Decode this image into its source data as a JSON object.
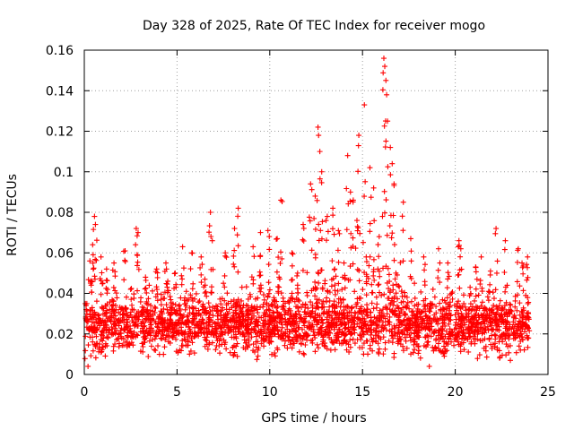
{
  "chart_data": {
    "type": "scatter",
    "title": "Day 328 of 2025, Rate Of TEC Index for receiver mogo",
    "xlabel": "GPS time / hours",
    "ylabel": "ROTI / TECUs",
    "xlim": [
      0,
      25
    ],
    "ylim": [
      0,
      0.16
    ],
    "xticks": [
      0,
      5,
      10,
      15,
      20,
      25
    ],
    "xtick_labels": [
      "0",
      "5",
      "10",
      "15",
      "20",
      "25"
    ],
    "yticks": [
      0,
      0.02,
      0.04,
      0.06,
      0.08,
      0.1,
      0.12,
      0.14,
      0.16
    ],
    "ytick_labels": [
      "0",
      "0.02",
      "0.04",
      "0.06",
      "0.08",
      "0.1",
      "0.12",
      "0.14",
      "0.16"
    ],
    "grid": true,
    "marker": "plus",
    "color": "#ff0000",
    "series": [
      {
        "name": "ROTI",
        "dense_band": {
          "x_range": [
            0,
            24
          ],
          "y_range": [
            0.005,
            0.045
          ]
        },
        "x": [
          0.3,
          0.45,
          0.55,
          0.6,
          0.9,
          1.2,
          1.6,
          2.2,
          2.8,
          2.9,
          3.3,
          3.9,
          4.4,
          4.9,
          5.3,
          5.8,
          6.3,
          6.8,
          6.9,
          7.6,
          8.1,
          8.3,
          9.1,
          9.5,
          9.9,
          10.4,
          10.6,
          11.2,
          11.8,
          12.2,
          12.45,
          12.6,
          12.7,
          12.8,
          13.1,
          13.4,
          13.7,
          14.2,
          14.35,
          14.5,
          14.7,
          14.8,
          15.1,
          15.4,
          15.6,
          15.9,
          16.15,
          16.2,
          16.3,
          16.35,
          16.5,
          16.6,
          16.7,
          17.2,
          17.6,
          18.3,
          19.1,
          19.6,
          20.2,
          20.3,
          21.1,
          21.4,
          21.9,
          22.2,
          22.7,
          23.4,
          23.6,
          23.9,
          0.1,
          1.0,
          2.5,
          3.5,
          4.5,
          5.5,
          6.5,
          7.5,
          8.5,
          9.5,
          10.5,
          11.5,
          13.5,
          14.0,
          15.2,
          16.8,
          17.8,
          18.8,
          19.8,
          20.8,
          21.8,
          22.8,
          23.8,
          18.6,
          0.2
        ],
        "y": [
          0.056,
          0.064,
          0.078,
          0.074,
          0.058,
          0.052,
          0.055,
          0.061,
          0.072,
          0.07,
          0.048,
          0.052,
          0.055,
          0.05,
          0.063,
          0.06,
          0.058,
          0.08,
          0.066,
          0.06,
          0.072,
          0.082,
          0.063,
          0.07,
          0.071,
          0.067,
          0.086,
          0.06,
          0.074,
          0.094,
          0.088,
          0.122,
          0.11,
          0.1,
          0.078,
          0.082,
          0.071,
          0.108,
          0.09,
          0.086,
          0.076,
          0.118,
          0.133,
          0.102,
          0.092,
          0.068,
          0.156,
          0.152,
          0.138,
          0.125,
          0.112,
          0.104,
          0.094,
          0.085,
          0.067,
          0.058,
          0.062,
          0.055,
          0.066,
          0.062,
          0.053,
          0.058,
          0.051,
          0.072,
          0.066,
          0.062,
          0.055,
          0.058,
          0.032,
          0.045,
          0.042,
          0.044,
          0.046,
          0.041,
          0.047,
          0.045,
          0.043,
          0.049,
          0.048,
          0.05,
          0.052,
          0.055,
          0.058,
          0.05,
          0.045,
          0.042,
          0.04,
          0.043,
          0.041,
          0.044,
          0.039,
          0.004,
          0.004
        ]
      }
    ]
  }
}
